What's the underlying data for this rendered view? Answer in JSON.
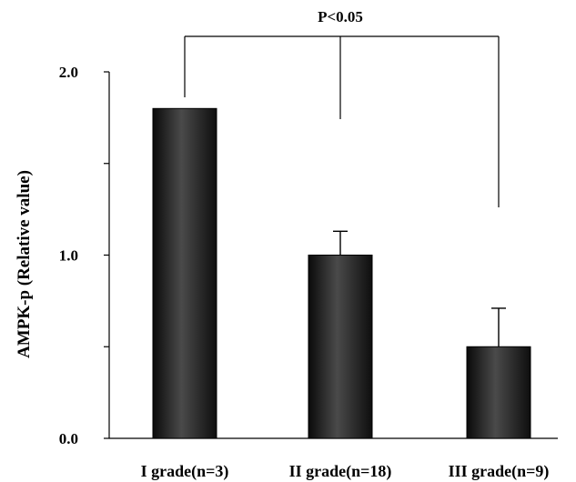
{
  "chart_data": {
    "type": "bar",
    "categories": [
      "I grade(n=3)",
      "II grade(n=18)",
      "III grade(n=9)"
    ],
    "values": [
      1.8,
      1.0,
      0.5
    ],
    "errors": [
      null,
      0.13,
      0.21
    ],
    "ylabel": "AMPK-p (Relative value)",
    "ylim": [
      0,
      2.0
    ],
    "yticks": [
      0.0,
      0.5,
      1.0,
      1.5,
      2.0
    ],
    "ytick_labels": [
      "0.0",
      "",
      "1.0",
      "",
      "2.0"
    ],
    "significance": {
      "label": "P<0.05",
      "groups": [
        0,
        1,
        2
      ]
    },
    "bar_color": "#2b2b2b",
    "grid": false
  }
}
